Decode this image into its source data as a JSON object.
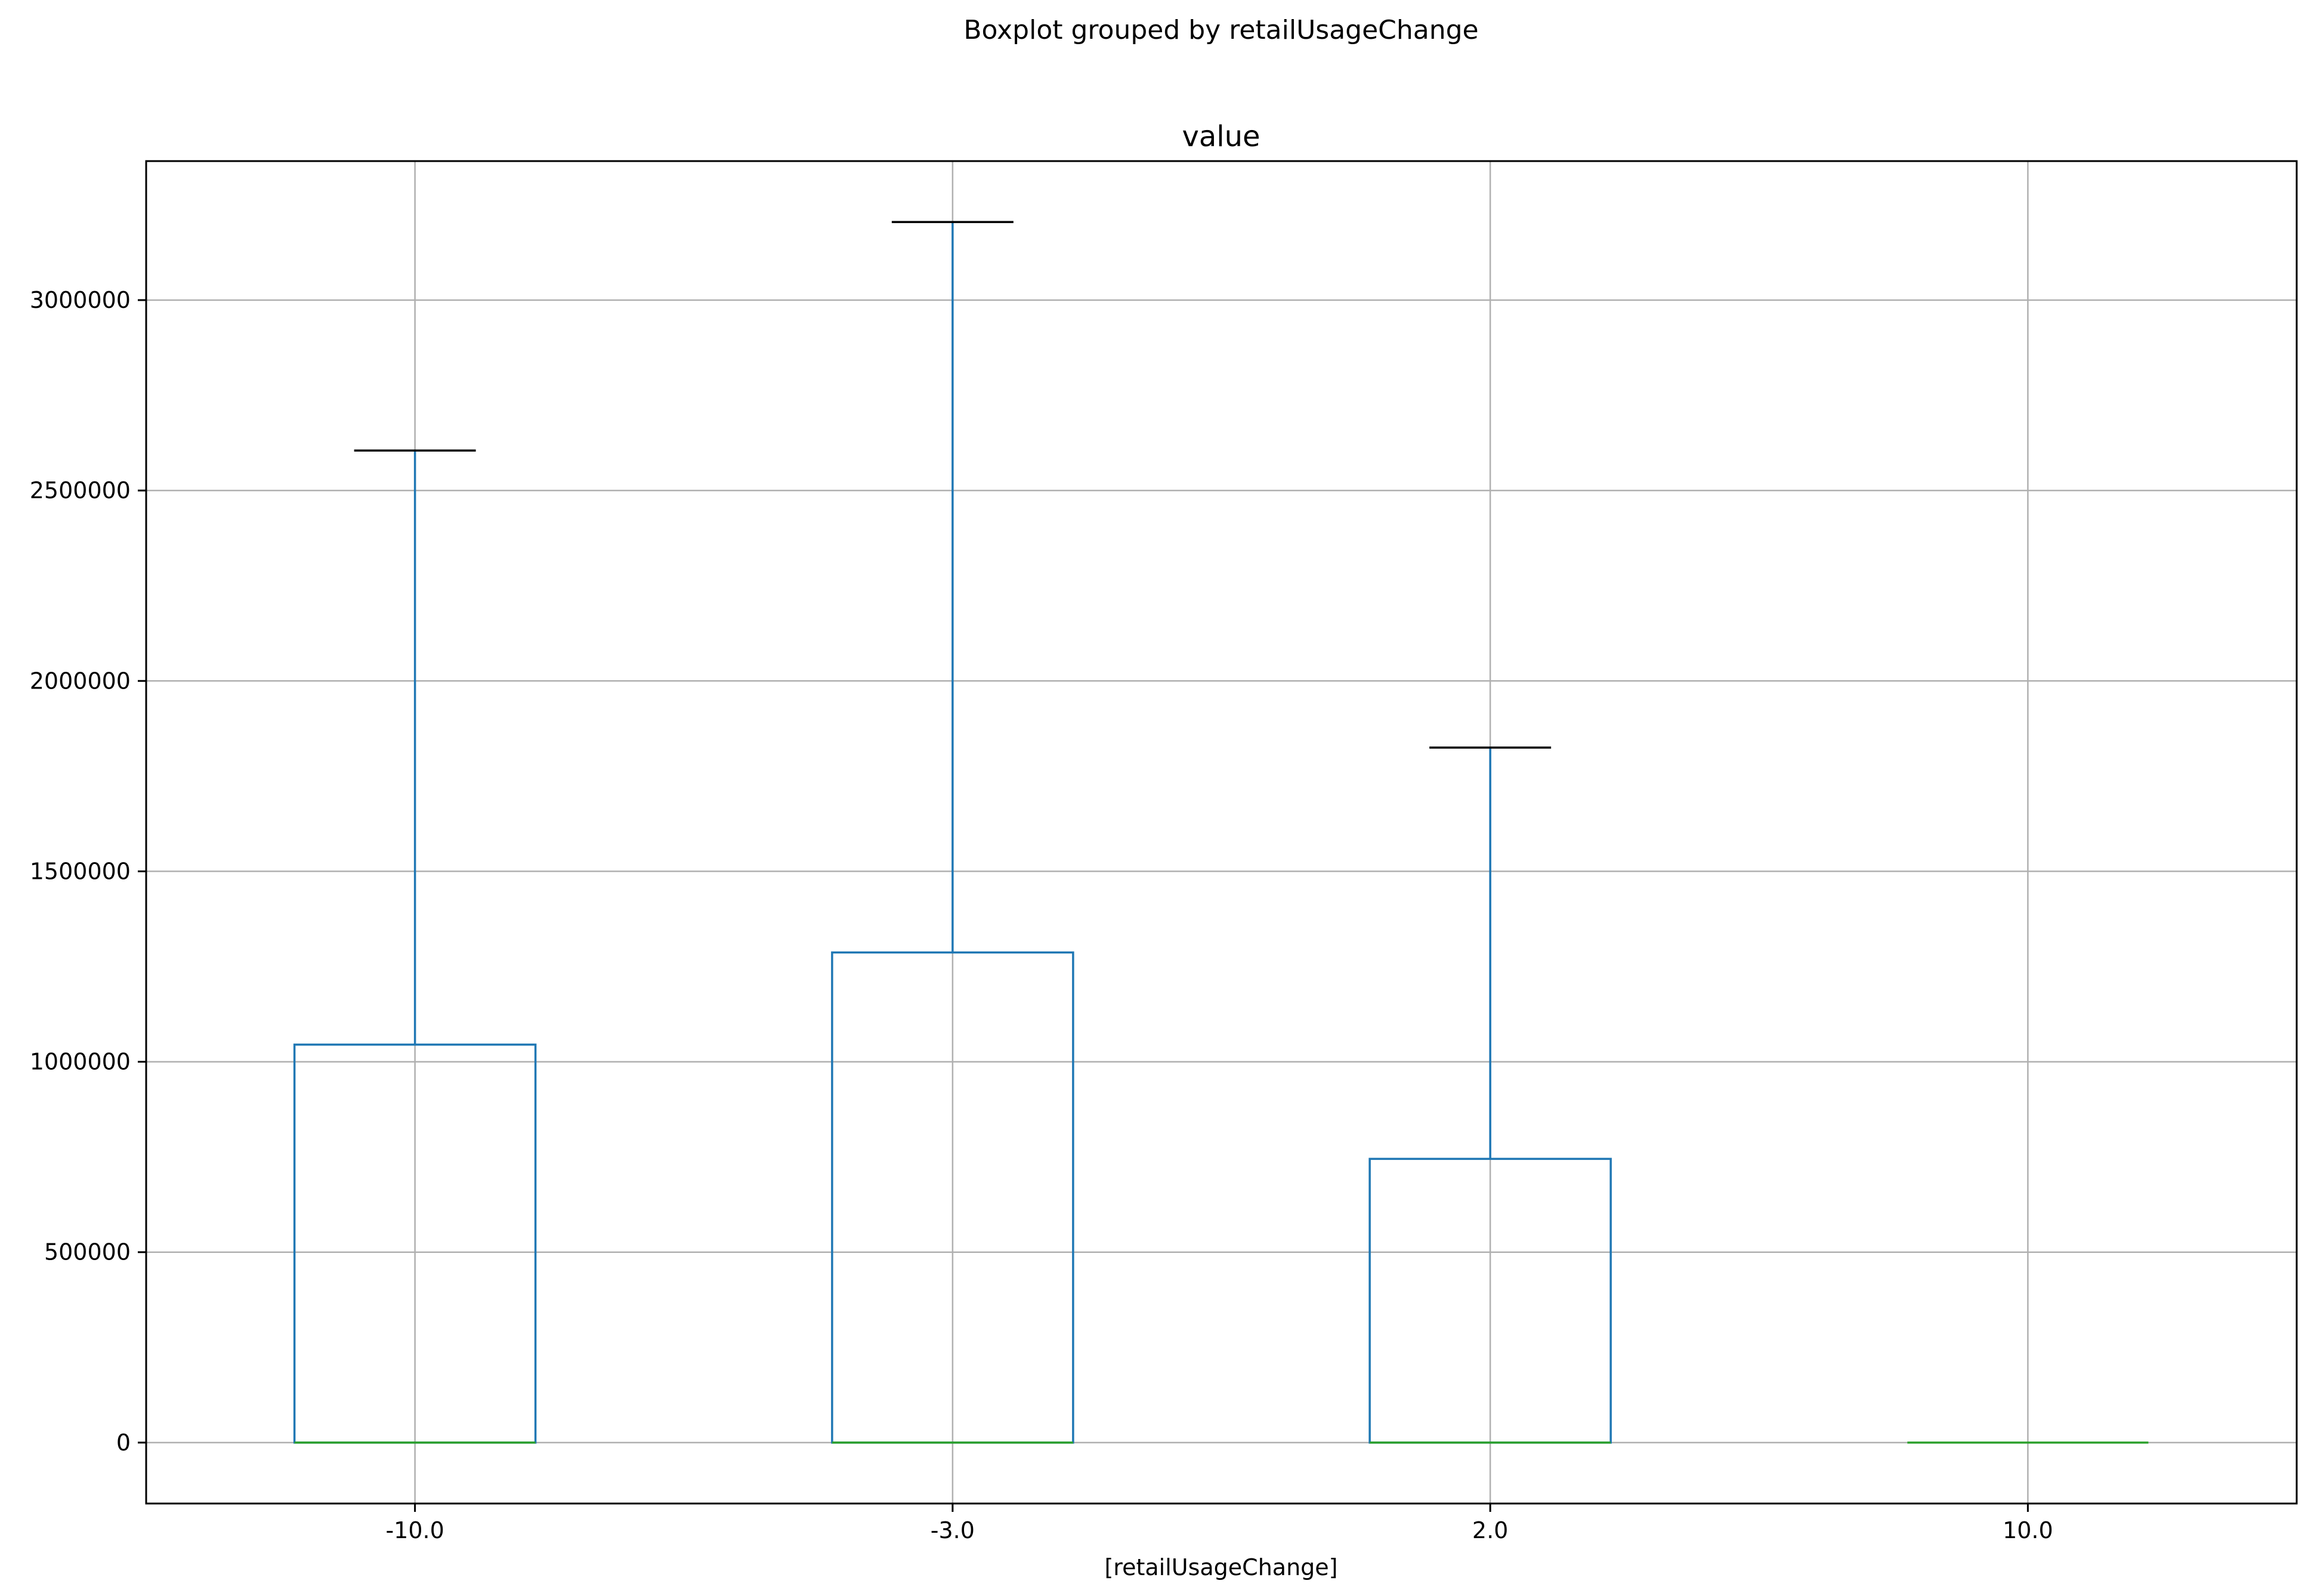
{
  "chart_data": {
    "type": "box",
    "suptitle": "Boxplot grouped by retailUsageChange",
    "title": "value",
    "xlabel": "[retailUsageChange]",
    "ylabel": "",
    "categories": [
      "-10.0",
      "-3.0",
      "2.0",
      "10.0"
    ],
    "boxes": [
      {
        "category": "-10.0",
        "whisker_low": 0,
        "q1": 0,
        "median": 0,
        "q3": 1045000,
        "whisker_high": 2605000
      },
      {
        "category": "-3.0",
        "whisker_low": 0,
        "q1": 0,
        "median": 0,
        "q3": 1287000,
        "whisker_high": 3205000
      },
      {
        "category": "2.0",
        "whisker_low": 0,
        "q1": 0,
        "median": 0,
        "q3": 745000,
        "whisker_high": 1825000
      },
      {
        "category": "10.0",
        "whisker_low": 0,
        "q1": 0,
        "median": 0,
        "q3": 0,
        "whisker_high": 0
      }
    ],
    "yticks": [
      0,
      500000,
      1000000,
      1500000,
      2000000,
      2500000,
      3000000
    ],
    "ylim": [
      -160000,
      3365000
    ],
    "grid": true,
    "colors": {
      "box": "#1f77b4",
      "median": "#2ca02c",
      "cap": "#000000",
      "grid": "#b0b0b0"
    }
  }
}
